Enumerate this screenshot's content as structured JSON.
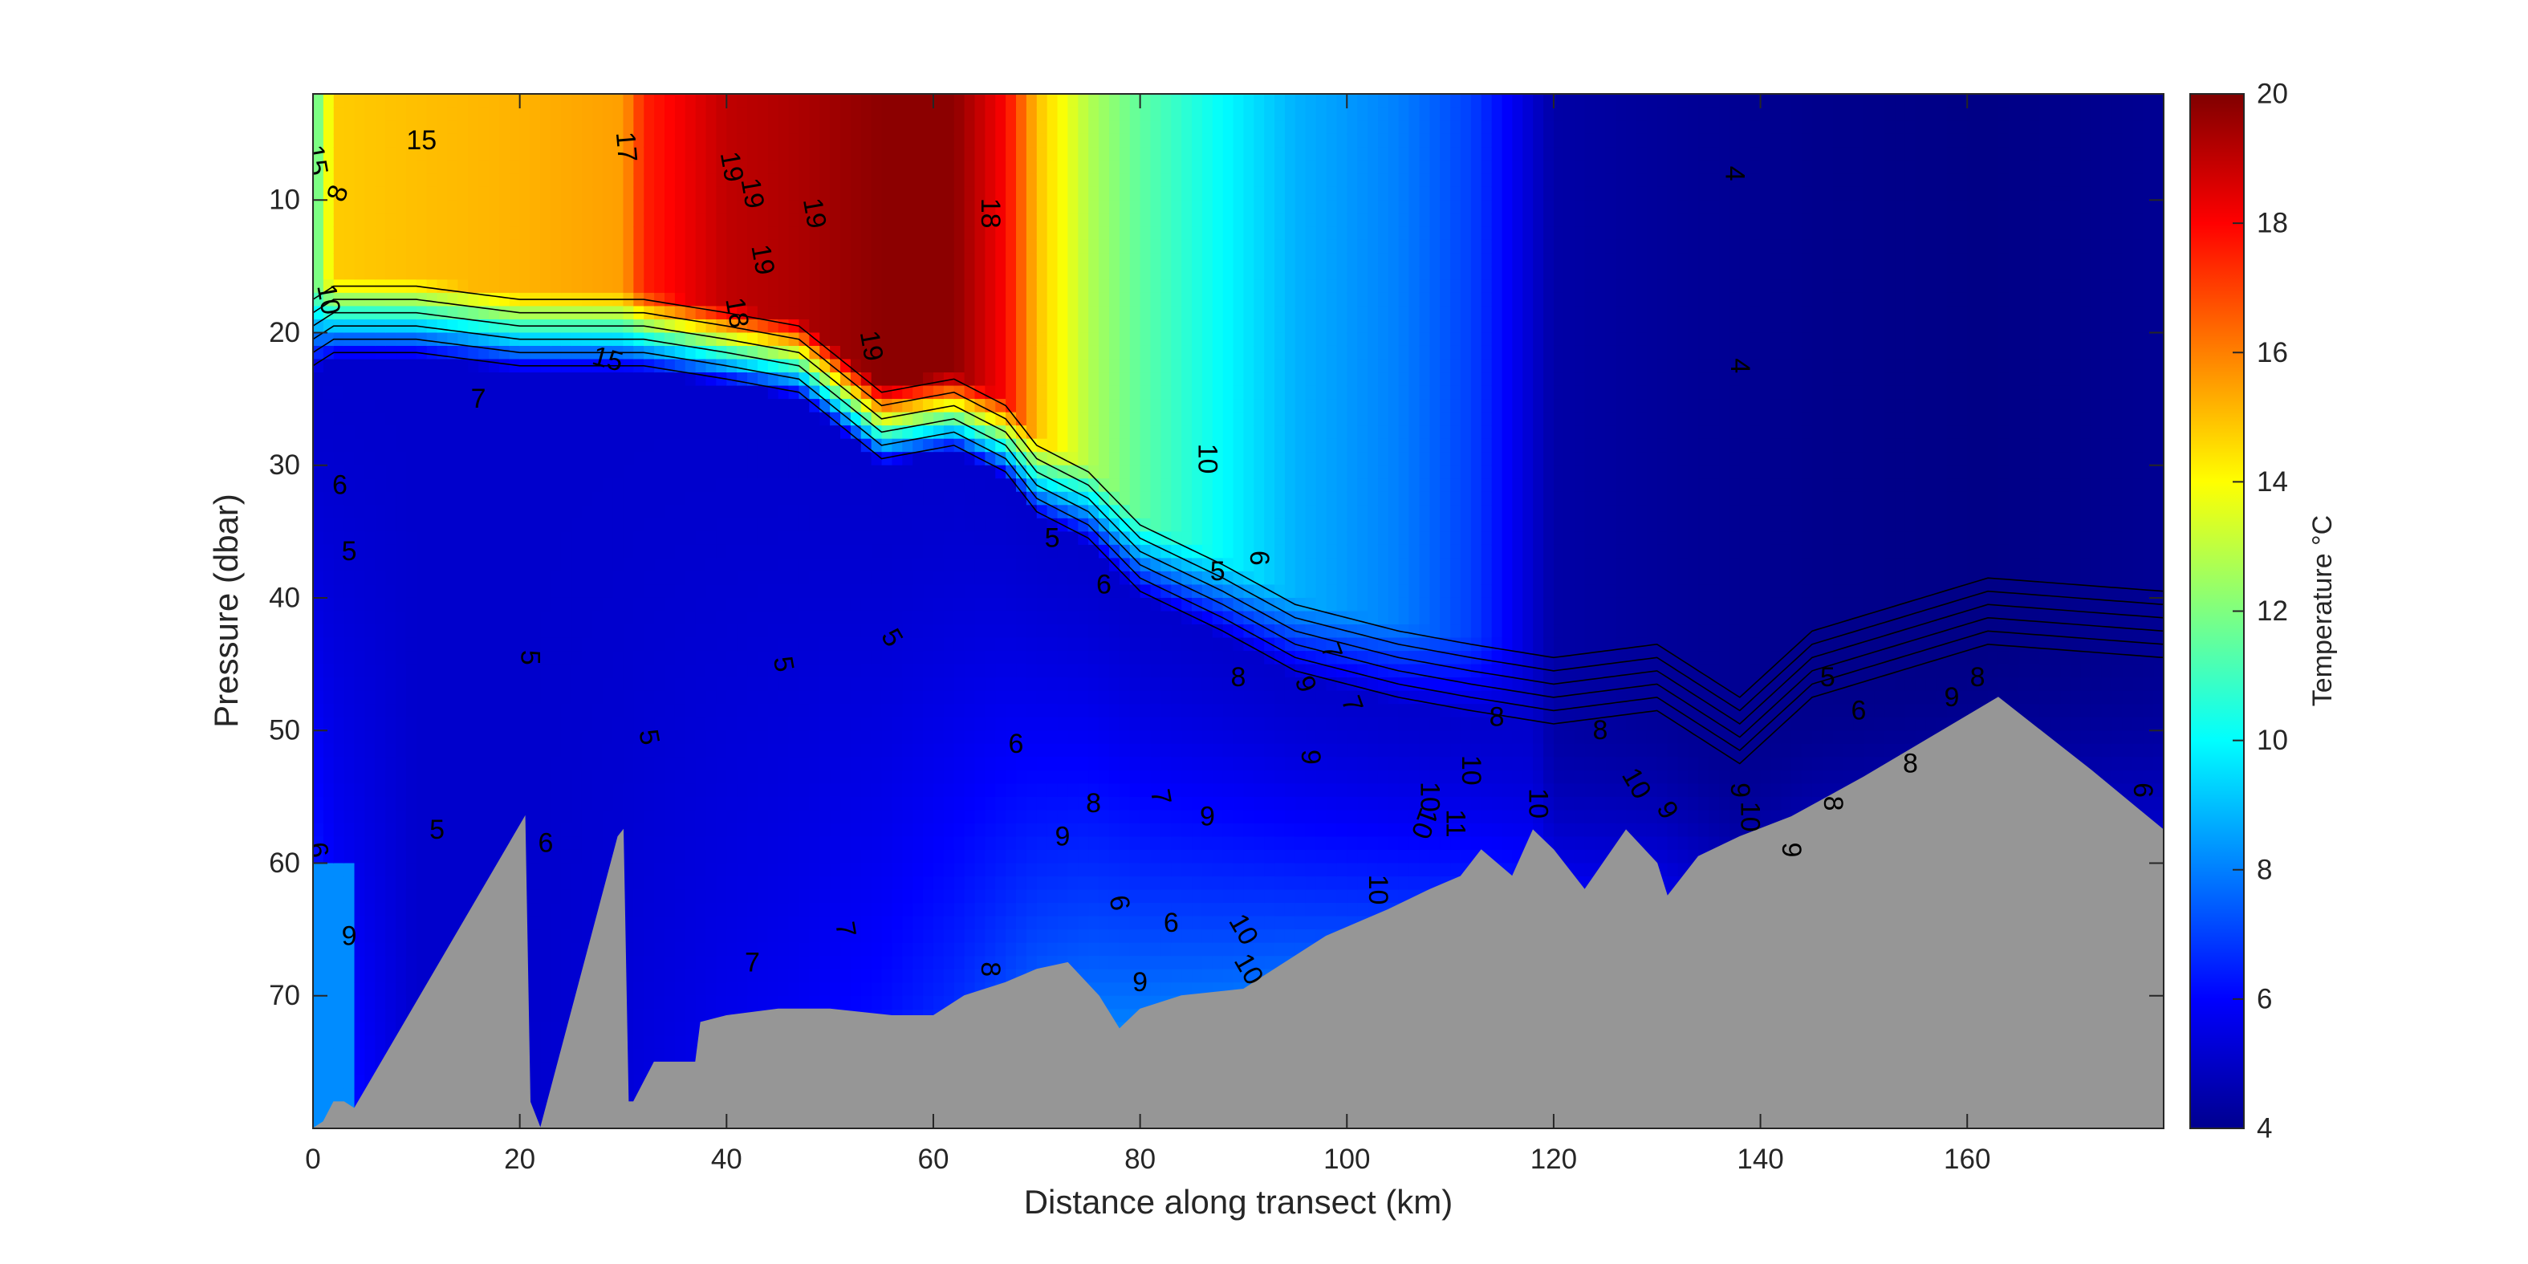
{
  "chart_data": {
    "type": "heatmap",
    "title": "",
    "xlabel": "Distance along transect (km)",
    "ylabel": "Pressure (dbar)",
    "xlim": [
      0,
      179
    ],
    "ylim": [
      2,
      80
    ],
    "y_reversed": true,
    "x_ticks": [
      0,
      20,
      40,
      60,
      80,
      100,
      120,
      140,
      160
    ],
    "x_tick_labels": [
      "0",
      "20",
      "40",
      "60",
      "80",
      "100",
      "120",
      "140",
      "160"
    ],
    "y_ticks": [
      10,
      20,
      30,
      40,
      50,
      60,
      70
    ],
    "y_tick_labels": [
      "10",
      "20",
      "30",
      "40",
      "50",
      "60",
      "70"
    ],
    "colorbar": {
      "label": "Temperature °C",
      "range": [
        4,
        20
      ],
      "ticks": [
        4,
        6,
        8,
        10,
        12,
        14,
        16,
        18,
        20
      ],
      "tick_labels": [
        "4",
        "6",
        "8",
        "10",
        "12",
        "14",
        "16",
        "18",
        "20"
      ],
      "colormap": "jet"
    },
    "columns": [
      {
        "x": 0,
        "surface_temp": 11,
        "mld": 20,
        "bottom_temp": 7.5
      },
      {
        "x": 2,
        "surface_temp": 14.8,
        "mld": 19,
        "bottom_temp": 6.5
      },
      {
        "x": 10,
        "surface_temp": 15,
        "mld": 19,
        "bottom_temp": 5.2
      },
      {
        "x": 20,
        "surface_temp": 15.2,
        "mld": 20,
        "bottom_temp": 5.2
      },
      {
        "x": 30,
        "surface_temp": 15.5,
        "mld": 20,
        "bottom_temp": 5.4
      },
      {
        "x": 32,
        "surface_temp": 17.5,
        "mld": 20,
        "bottom_temp": 5.5
      },
      {
        "x": 40,
        "surface_temp": 19,
        "mld": 21,
        "bottom_temp": 5.8
      },
      {
        "x": 47,
        "surface_temp": 19.3,
        "mld": 22,
        "bottom_temp": 6
      },
      {
        "x": 55,
        "surface_temp": 19.8,
        "mld": 27,
        "bottom_temp": 6.5
      },
      {
        "x": 62,
        "surface_temp": 19.8,
        "mld": 26,
        "bottom_temp": 7.2
      },
      {
        "x": 67,
        "surface_temp": 18,
        "mld": 28,
        "bottom_temp": 8
      },
      {
        "x": 70,
        "surface_temp": 15,
        "mld": 31,
        "bottom_temp": 8.6
      },
      {
        "x": 75,
        "surface_temp": 12.8,
        "mld": 33,
        "bottom_temp": 9
      },
      {
        "x": 80,
        "surface_temp": 11.5,
        "mld": 37,
        "bottom_temp": 9.2
      },
      {
        "x": 88,
        "surface_temp": 10,
        "mld": 40,
        "bottom_temp": 9.5
      },
      {
        "x": 95,
        "surface_temp": 8.8,
        "mld": 43,
        "bottom_temp": 10
      },
      {
        "x": 105,
        "surface_temp": 8,
        "mld": 45,
        "bottom_temp": 10.3
      },
      {
        "x": 112,
        "surface_temp": 7,
        "mld": 46,
        "bottom_temp": 10.5
      },
      {
        "x": 120,
        "surface_temp": 4.6,
        "mld": 47,
        "bottom_temp": 10
      },
      {
        "x": 130,
        "surface_temp": 4.4,
        "mld": 46,
        "bottom_temp": 9.5
      },
      {
        "x": 138,
        "surface_temp": 4.3,
        "mld": 50,
        "bottom_temp": 8.6
      },
      {
        "x": 145,
        "surface_temp": 4.2,
        "mld": 45,
        "bottom_temp": 8.5
      },
      {
        "x": 162,
        "surface_temp": 4.1,
        "mld": 41,
        "bottom_temp": 8.5
      },
      {
        "x": 179,
        "surface_temp": 4.3,
        "mld": 42,
        "bottom_temp": 8.8
      }
    ],
    "near_shore_deep": {
      "x_max": 4,
      "p_min": 60,
      "temp": 8.2
    },
    "bathymetry": [
      [
        0,
        80
      ],
      [
        1,
        79.5
      ],
      [
        2,
        78
      ],
      [
        3,
        78
      ],
      [
        4,
        78.5
      ],
      [
        20.5,
        56.5
      ],
      [
        21,
        78
      ],
      [
        22,
        80
      ],
      [
        29.5,
        58
      ],
      [
        30,
        57.5
      ],
      [
        30.5,
        78
      ],
      [
        31,
        78
      ],
      [
        33,
        75
      ],
      [
        37,
        75
      ],
      [
        37.5,
        72
      ],
      [
        40,
        71.5
      ],
      [
        45,
        71
      ],
      [
        50,
        71
      ],
      [
        56,
        71.5
      ],
      [
        60,
        71.5
      ],
      [
        63,
        70
      ],
      [
        67,
        69
      ],
      [
        70,
        68
      ],
      [
        73,
        67.5
      ],
      [
        76,
        70
      ],
      [
        78,
        72.5
      ],
      [
        80,
        71
      ],
      [
        84,
        70
      ],
      [
        90,
        69.5
      ],
      [
        93,
        68
      ],
      [
        98,
        65.5
      ],
      [
        104,
        63.5
      ],
      [
        108,
        62
      ],
      [
        111,
        61
      ],
      [
        113,
        59
      ],
      [
        116,
        61
      ],
      [
        118,
        57.5
      ],
      [
        120,
        59
      ],
      [
        123,
        62
      ],
      [
        127,
        57.5
      ],
      [
        130,
        60
      ],
      [
        131,
        62.5
      ],
      [
        134,
        59.5
      ],
      [
        138,
        58
      ],
      [
        143,
        56.5
      ],
      [
        150,
        53.5
      ],
      [
        163,
        47.5
      ],
      [
        172,
        53
      ],
      [
        179,
        57.5
      ],
      [
        179,
        80
      ]
    ],
    "annotations": [
      {
        "text": "15",
        "x": 10.5,
        "p": 5.5
      },
      {
        "text": "15",
        "x": 0.3,
        "p": 7,
        "rotate": 80
      },
      {
        "text": "8",
        "x": 2.4,
        "p": 9.5,
        "rotate": -70
      },
      {
        "text": "10",
        "x": 1.5,
        "p": 17.5,
        "rotate": 80
      },
      {
        "text": "17",
        "x": 30.3,
        "p": 6,
        "rotate": 85
      },
      {
        "text": "19",
        "x": 40.5,
        "p": 7.5,
        "rotate": 80
      },
      {
        "text": "19",
        "x": 42.5,
        "p": 9.5,
        "rotate": 80
      },
      {
        "text": "19",
        "x": 43.5,
        "p": 14.5,
        "rotate": 80
      },
      {
        "text": "19",
        "x": 48.5,
        "p": 11,
        "rotate": 80
      },
      {
        "text": "18",
        "x": 41,
        "p": 18.5,
        "rotate": 80
      },
      {
        "text": "19",
        "x": 54,
        "p": 21,
        "rotate": 80
      },
      {
        "text": "18",
        "x": 65.5,
        "p": 11,
        "rotate": 90
      },
      {
        "text": "15",
        "x": 28.5,
        "p": 22,
        "rotate": 15
      },
      {
        "text": "7",
        "x": 16,
        "p": 25
      },
      {
        "text": "6",
        "x": 2.6,
        "p": 31.5
      },
      {
        "text": "5",
        "x": 3.5,
        "p": 36.5
      },
      {
        "text": "5",
        "x": 21,
        "p": 44.5,
        "rotate": 90
      },
      {
        "text": "5",
        "x": 32.5,
        "p": 50.5,
        "rotate": 80
      },
      {
        "text": "5",
        "x": 45.5,
        "p": 45,
        "rotate": 80
      },
      {
        "text": "5",
        "x": 56,
        "p": 43,
        "rotate": 60
      },
      {
        "text": "5",
        "x": 12,
        "p": 57.5
      },
      {
        "text": "6",
        "x": 22.5,
        "p": 58.5
      },
      {
        "text": "6",
        "x": 0.5,
        "p": 59,
        "rotate": 80
      },
      {
        "text": "9",
        "x": 3.5,
        "p": 65.5
      },
      {
        "text": "7",
        "x": 42.5,
        "p": 67.5
      },
      {
        "text": "7",
        "x": 51.5,
        "p": 65,
        "rotate": 80
      },
      {
        "text": "10",
        "x": 86.5,
        "p": 29.5,
        "rotate": 90
      },
      {
        "text": "5",
        "x": 71.5,
        "p": 35.5
      },
      {
        "text": "6",
        "x": 76.5,
        "p": 39
      },
      {
        "text": "6",
        "x": 91.5,
        "p": 37,
        "rotate": 90
      },
      {
        "text": "5",
        "x": 87.5,
        "p": 38
      },
      {
        "text": "7",
        "x": 98.5,
        "p": 44,
        "rotate": 70
      },
      {
        "text": "8",
        "x": 89.5,
        "p": 46
      },
      {
        "text": "9",
        "x": 96,
        "p": 46.5,
        "rotate": 70
      },
      {
        "text": "7",
        "x": 100.5,
        "p": 48,
        "rotate": 70
      },
      {
        "text": "9",
        "x": 96.5,
        "p": 52,
        "rotate": 90
      },
      {
        "text": "9",
        "x": 86.5,
        "p": 56.5
      },
      {
        "text": "10",
        "x": 103,
        "p": 62,
        "rotate": 90
      },
      {
        "text": "10",
        "x": 107.5,
        "p": 57,
        "rotate": 110
      },
      {
        "text": "10",
        "x": 108,
        "p": 55,
        "rotate": 90
      },
      {
        "text": "11",
        "x": 110.5,
        "p": 57,
        "rotate": 90
      },
      {
        "text": "10",
        "x": 112,
        "p": 53,
        "rotate": 90
      },
      {
        "text": "10",
        "x": 118.5,
        "p": 55.5,
        "rotate": 90
      },
      {
        "text": "8",
        "x": 124.5,
        "p": 50
      },
      {
        "text": "10",
        "x": 128,
        "p": 54,
        "rotate": 60
      },
      {
        "text": "9",
        "x": 131,
        "p": 56,
        "rotate": 60
      },
      {
        "text": "9",
        "x": 138,
        "p": 54.5,
        "rotate": 90
      },
      {
        "text": "10",
        "x": 139,
        "p": 56.5,
        "rotate": 90
      },
      {
        "text": "9",
        "x": 143,
        "p": 59,
        "rotate": 90
      },
      {
        "text": "5",
        "x": 146.5,
        "p": 46
      },
      {
        "text": "6",
        "x": 149.5,
        "p": 48.5
      },
      {
        "text": "8",
        "x": 154.5,
        "p": 52.5
      },
      {
        "text": "8",
        "x": 147,
        "p": 55.5,
        "rotate": 90
      },
      {
        "text": "9",
        "x": 158.5,
        "p": 47.5
      },
      {
        "text": "8",
        "x": 161,
        "p": 46
      },
      {
        "text": "8",
        "x": 114.5,
        "p": 49
      },
      {
        "text": "6",
        "x": 68,
        "p": 51
      },
      {
        "text": "9",
        "x": 72.5,
        "p": 58
      },
      {
        "text": "8",
        "x": 75.5,
        "p": 55.5
      },
      {
        "text": "7",
        "x": 82,
        "p": 55,
        "rotate": 80
      },
      {
        "text": "6",
        "x": 83,
        "p": 64.5
      },
      {
        "text": "10",
        "x": 90,
        "p": 65,
        "rotate": 60
      },
      {
        "text": "10",
        "x": 90.5,
        "p": 68,
        "rotate": 60
      },
      {
        "text": "9",
        "x": 80,
        "p": 69
      },
      {
        "text": "6",
        "x": 78,
        "p": 63,
        "rotate": 80
      },
      {
        "text": "8",
        "x": 65.5,
        "p": 68,
        "rotate": 90
      },
      {
        "text": "4",
        "x": 137.5,
        "p": 8,
        "rotate": 90
      },
      {
        "text": "4",
        "x": 138,
        "p": 22.5,
        "rotate": 90
      },
      {
        "text": "6",
        "x": 177,
        "p": 54.5,
        "rotate": 90
      }
    ]
  }
}
